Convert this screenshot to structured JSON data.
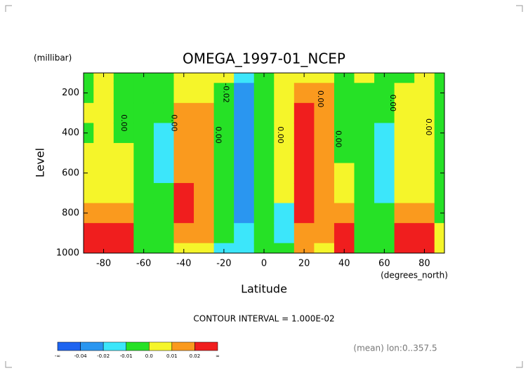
{
  "chart_data": {
    "type": "contour",
    "title": "OMEGA_1997-01_NCEP",
    "y_unit": "(millibar)",
    "ylabel": "Level",
    "xlabel": "Latitude",
    "x_unit": "(degrees_north)",
    "contour_interval": "CONTOUR INTERVAL = 1.000E-02",
    "footnote": "(mean) lon:0..357.5",
    "x": [
      -90,
      -80,
      -70,
      -60,
      -50,
      -40,
      -30,
      -20,
      -10,
      0,
      10,
      20,
      30,
      40,
      50,
      60,
      70,
      80,
      90
    ],
    "y": [
      100,
      200,
      300,
      400,
      500,
      600,
      700,
      800,
      900,
      1000
    ],
    "xlim": [
      -90,
      90
    ],
    "ylim": [
      1000,
      100
    ],
    "xticks": [
      -80,
      -60,
      -40,
      -20,
      0,
      20,
      40,
      60,
      80
    ],
    "yticks": [
      200,
      400,
      600,
      800,
      1000
    ],
    "z": [
      [
        -0.005,
        -0.005,
        0.005,
        -0.005,
        0.005,
        0.005,
        0.005,
        0.015,
        0.025,
        0.025
      ],
      [
        0.005,
        0.005,
        0.005,
        0.005,
        0.005,
        0.005,
        0.005,
        0.015,
        0.025,
        0.025
      ],
      [
        -0.005,
        -0.005,
        -0.005,
        -0.005,
        0.005,
        0.005,
        0.005,
        0.015,
        0.025,
        0.025
      ],
      [
        -0.005,
        -0.005,
        -0.005,
        -0.005,
        -0.005,
        -0.005,
        -0.005,
        -0.005,
        -0.005,
        -0.005
      ],
      [
        -0.005,
        -0.005,
        -0.005,
        -0.015,
        -0.015,
        -0.015,
        -0.005,
        -0.005,
        -0.005,
        -0.005
      ],
      [
        0.005,
        0.005,
        0.015,
        0.015,
        0.015,
        0.015,
        0.025,
        0.025,
        0.015,
        0.005
      ],
      [
        0.005,
        0.005,
        0.015,
        0.015,
        0.015,
        0.015,
        0.015,
        0.015,
        0.015,
        0.005
      ],
      [
        0.005,
        -0.005,
        -0.005,
        -0.005,
        -0.005,
        -0.005,
        -0.005,
        -0.005,
        -0.005,
        -0.015
      ],
      [
        -0.015,
        -0.025,
        -0.025,
        -0.025,
        -0.025,
        -0.025,
        -0.025,
        -0.025,
        -0.015,
        -0.015
      ],
      [
        -0.005,
        -0.005,
        -0.005,
        -0.005,
        -0.005,
        -0.005,
        -0.005,
        -0.005,
        -0.005,
        -0.005
      ],
      [
        0.005,
        0.005,
        0.005,
        0.005,
        0.005,
        0.005,
        0.005,
        -0.015,
        -0.015,
        -0.005
      ],
      [
        0.005,
        0.015,
        0.025,
        0.025,
        0.025,
        0.025,
        0.025,
        0.025,
        0.015,
        0.015
      ],
      [
        0.005,
        0.015,
        0.015,
        0.015,
        0.015,
        0.015,
        0.015,
        0.015,
        0.015,
        0.005
      ],
      [
        -0.005,
        -0.005,
        -0.005,
        -0.005,
        -0.005,
        0.005,
        0.005,
        0.015,
        0.025,
        0.025
      ],
      [
        0.005,
        -0.005,
        -0.005,
        -0.005,
        -0.005,
        -0.005,
        -0.005,
        -0.005,
        -0.005,
        -0.005
      ],
      [
        -0.005,
        -0.005,
        -0.005,
        -0.015,
        -0.015,
        -0.015,
        -0.015,
        -0.005,
        -0.005,
        -0.005
      ],
      [
        -0.005,
        0.005,
        0.005,
        0.005,
        0.005,
        0.005,
        0.005,
        0.015,
        0.025,
        0.025
      ],
      [
        0.005,
        0.005,
        0.005,
        0.005,
        0.005,
        0.005,
        0.005,
        0.015,
        0.025,
        0.025
      ],
      [
        -0.005,
        -0.005,
        -0.005,
        -0.005,
        -0.005,
        -0.005,
        -0.005,
        -0.005,
        0.005,
        0.005
      ]
    ],
    "levels": [
      -0.04,
      -0.02,
      -0.01,
      {
        "value": 0,
        "label": "0.0"
      },
      0.01,
      0.02
    ],
    "colorbar_ends": [
      "-∞",
      "∞"
    ],
    "colors": [
      "#1e64f0",
      "#2a96f0",
      "#3ce6fa",
      "#26e126",
      "#f5f52a",
      "#fa9a1e",
      "#f01e1e"
    ],
    "contour_labels": [
      {
        "text": "0.00",
        "x": -70,
        "y": 350
      },
      {
        "text": "0.00",
        "x": -45,
        "y": 350
      },
      {
        "text": "0.00",
        "x": -23,
        "y": 410
      },
      {
        "text": "-0.02",
        "x": -19,
        "y": 200
      },
      {
        "text": "0.00",
        "x": 8,
        "y": 410
      },
      {
        "text": "0.00",
        "x": 28,
        "y": 230
      },
      {
        "text": "0.00",
        "x": 37,
        "y": 430
      },
      {
        "text": "0.00",
        "x": 64,
        "y": 250
      },
      {
        "text": "0.00",
        "x": 82,
        "y": 370
      }
    ]
  }
}
